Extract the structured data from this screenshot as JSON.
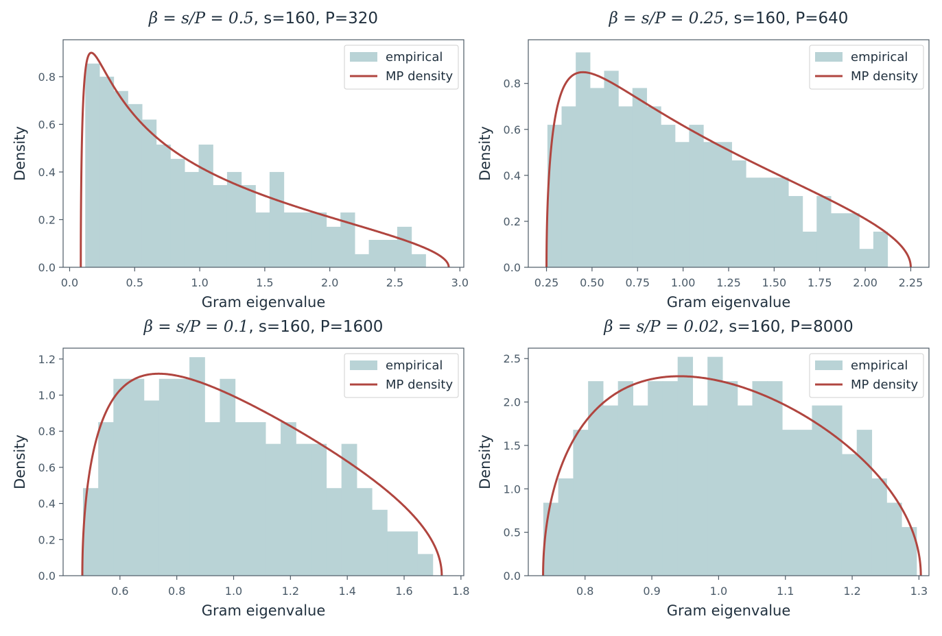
{
  "colors": {
    "bar": "#b9d3d6",
    "line": "#b0453f",
    "axes": "#4d5a66",
    "text": "#1f2f3d"
  },
  "chart_data": [
    {
      "type": "bar",
      "title_prefix": "β = s/P = 0.5",
      "title_rest": ", s=160, P=320",
      "xlabel": "Gram eigenvalue",
      "ylabel": "Density",
      "xlim": [
        -0.05,
        3.03
      ],
      "ylim": [
        0,
        0.955
      ],
      "xticks": [
        0.0,
        0.5,
        1.0,
        1.5,
        2.0,
        2.5,
        3.0
      ],
      "xtick_labels": [
        "0.0",
        "0.5",
        "1.0",
        "1.5",
        "2.0",
        "2.5",
        "3.0"
      ],
      "yticks": [
        0.0,
        0.2,
        0.4,
        0.6,
        0.8
      ],
      "ytick_labels": [
        "0.0",
        "0.2",
        "0.4",
        "0.6",
        "0.8"
      ],
      "legend_position": "top-right",
      "legend": [
        "empirical",
        "MP density"
      ],
      "histogram": {
        "bin_start": 0.12,
        "bin_width": 0.109,
        "values": [
          0.855,
          0.8,
          0.74,
          0.685,
          0.62,
          0.515,
          0.455,
          0.4,
          0.515,
          0.345,
          0.4,
          0.345,
          0.23,
          0.4,
          0.23,
          0.23,
          0.23,
          0.17,
          0.23,
          0.055,
          0.115,
          0.115,
          0.17,
          0.055
        ]
      },
      "curve": {
        "name": "MP density",
        "beta": 0.5
      }
    },
    {
      "type": "bar",
      "title_prefix": "β = s/P = 0.25",
      "title_rest": ", s=160, P=640",
      "xlabel": "Gram eigenvalue",
      "ylabel": "Density",
      "xlim": [
        0.15,
        2.35
      ],
      "ylim": [
        0,
        0.99
      ],
      "xticks": [
        0.25,
        0.5,
        0.75,
        1.0,
        1.25,
        1.5,
        1.75,
        2.0,
        2.25
      ],
      "xtick_labels": [
        "0.25",
        "0.50",
        "0.75",
        "1.00",
        "1.25",
        "1.50",
        "1.75",
        "2.00",
        "2.25"
      ],
      "yticks": [
        0.0,
        0.2,
        0.4,
        0.6,
        0.8
      ],
      "ytick_labels": [
        "0.0",
        "0.2",
        "0.4",
        "0.6",
        "0.8"
      ],
      "legend_position": "top-right",
      "legend": [
        "empirical",
        "MP density"
      ],
      "histogram": {
        "bin_start": 0.255,
        "bin_width": 0.0778,
        "values": [
          0.62,
          0.7,
          0.935,
          0.78,
          0.855,
          0.7,
          0.78,
          0.7,
          0.62,
          0.545,
          0.62,
          0.545,
          0.545,
          0.465,
          0.39,
          0.39,
          0.39,
          0.31,
          0.155,
          0.31,
          0.235,
          0.235,
          0.08,
          0.155
        ]
      },
      "curve": {
        "name": "MP density",
        "beta": 0.25
      }
    },
    {
      "type": "bar",
      "title_prefix": "β = s/P = 0.1",
      "title_rest": ", s=160, P=1600",
      "xlabel": "Gram eigenvalue",
      "ylabel": "Density",
      "xlim": [
        0.4,
        1.81
      ],
      "ylim": [
        0,
        1.26
      ],
      "xticks": [
        0.6,
        0.8,
        1.0,
        1.2,
        1.4,
        1.6,
        1.8
      ],
      "xtick_labels": [
        "0.6",
        "0.8",
        "1.0",
        "1.2",
        "1.4",
        "1.6",
        "1.8"
      ],
      "yticks": [
        0.0,
        0.2,
        0.4,
        0.6,
        0.8,
        1.0,
        1.2
      ],
      "ytick_labels": [
        "0.0",
        "0.2",
        "0.4",
        "0.6",
        "0.8",
        "1.0",
        "1.2"
      ],
      "legend_position": "top-right",
      "legend": [
        "empirical",
        "MP density"
      ],
      "histogram": {
        "bin_start": 0.47,
        "bin_width": 0.0535,
        "values": [
          0.485,
          0.85,
          1.09,
          1.09,
          0.97,
          1.09,
          1.09,
          1.21,
          0.85,
          1.09,
          0.85,
          0.85,
          0.73,
          0.85,
          0.73,
          0.73,
          0.485,
          0.73,
          0.485,
          0.365,
          0.245,
          0.245,
          0.12
        ]
      },
      "curve": {
        "name": "MP density",
        "beta": 0.1
      }
    },
    {
      "type": "bar",
      "title_prefix": "β = s/P = 0.02",
      "title_rest": ", s=160, P=8000",
      "xlabel": "Gram eigenvalue",
      "ylabel": "Density",
      "xlim": [
        0.715,
        1.315
      ],
      "ylim": [
        0,
        2.62
      ],
      "xticks": [
        0.8,
        0.9,
        1.0,
        1.1,
        1.2,
        1.3
      ],
      "xtick_labels": [
        "0.8",
        "0.9",
        "1.0",
        "1.1",
        "1.2",
        "1.3"
      ],
      "yticks": [
        0.0,
        0.5,
        1.0,
        1.5,
        2.0,
        2.5
      ],
      "ytick_labels": [
        "0.0",
        "0.5",
        "1.0",
        "1.5",
        "2.0",
        "2.5"
      ],
      "legend_position": "top-right",
      "legend": [
        "empirical",
        "MP density"
      ],
      "histogram": {
        "bin_start": 0.7375,
        "bin_width": 0.02235,
        "values": [
          0.84,
          1.12,
          1.68,
          2.24,
          1.96,
          2.24,
          1.96,
          2.24,
          2.24,
          2.52,
          1.96,
          2.52,
          2.24,
          1.96,
          2.24,
          2.24,
          1.68,
          1.68,
          1.96,
          1.96,
          1.4,
          1.68,
          1.12,
          0.84,
          0.56
        ]
      },
      "curve": {
        "name": "MP density",
        "beta": 0.02
      }
    }
  ]
}
